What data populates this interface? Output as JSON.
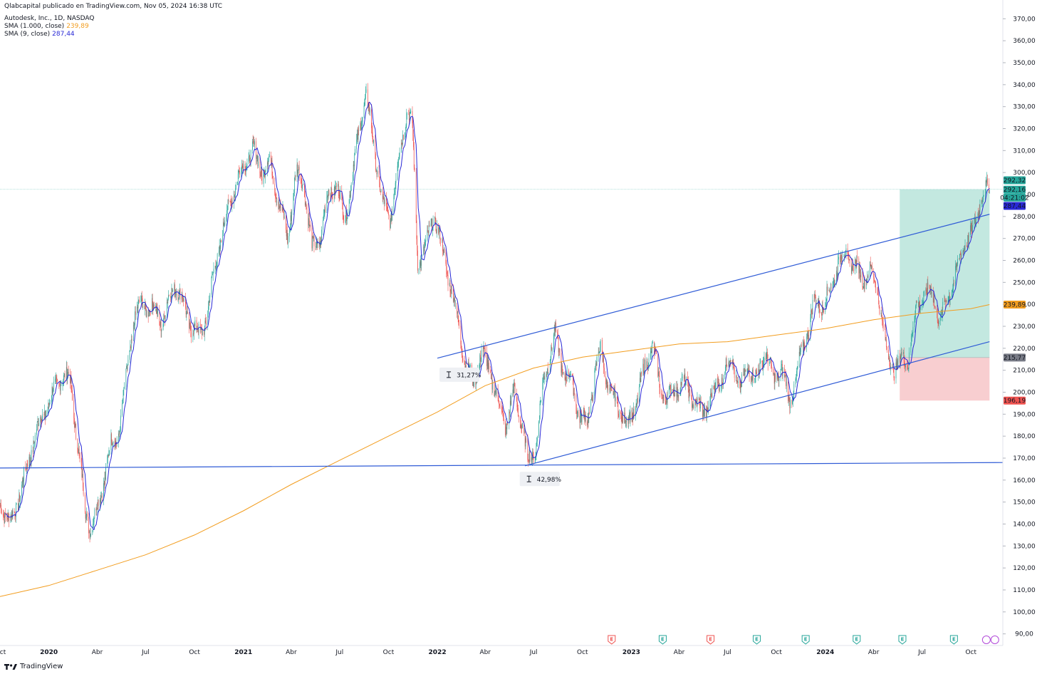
{
  "header": {
    "attribution": "Qlabcapital publicado en TradingView.com, Nov 05, 2024 16:38 UTC",
    "symbol": "Autodesk, Inc., 1D, NASDAQ",
    "indicators": [
      {
        "label": "SMA (1.000, close)",
        "value": "239,89",
        "color": "#f29d1f"
      },
      {
        "label": "SMA (9, close)",
        "value": "287,44",
        "color": "#2929d6"
      }
    ]
  },
  "footer": {
    "brand": "TradingView"
  },
  "colors": {
    "up": "#26a69a",
    "down": "#ef5350",
    "sma_long": "#f29d1f",
    "sma_short": "#2929d6",
    "trendline": "#2f5bd6",
    "profit_zone": "#b9e4da",
    "loss_zone": "#f7c6c8"
  },
  "chart_data": {
    "type": "candlestick",
    "title": "",
    "xlabel": "",
    "ylabel": "",
    "ylim": [
      86,
      374
    ],
    "xlim": [
      "2019-10-01",
      "2024-11-30"
    ],
    "y_ticks": [
      "90,00",
      "100,00",
      "110,00",
      "120,00",
      "130,00",
      "140,00",
      "150,00",
      "160,00",
      "170,00",
      "180,00",
      "190,00",
      "200,00",
      "210,00",
      "220,00",
      "230,00",
      "240,00",
      "250,00",
      "260,00",
      "270,00",
      "280,00",
      "290,00",
      "300,00",
      "310,00",
      "320,00",
      "330,00",
      "340,00",
      "350,00",
      "360,00",
      "370,00"
    ],
    "x_ticks": [
      {
        "date": "2019-10-01",
        "label": "ct",
        "bold": false
      },
      {
        "date": "2020-01-01",
        "label": "2020",
        "bold": true
      },
      {
        "date": "2020-04-01",
        "label": "Abr",
        "bold": false
      },
      {
        "date": "2020-07-01",
        "label": "Jul",
        "bold": false
      },
      {
        "date": "2020-10-01",
        "label": "Oct",
        "bold": false
      },
      {
        "date": "2021-01-01",
        "label": "2021",
        "bold": true
      },
      {
        "date": "2021-04-01",
        "label": "Abr",
        "bold": false
      },
      {
        "date": "2021-07-01",
        "label": "Jul",
        "bold": false
      },
      {
        "date": "2021-10-01",
        "label": "Oct",
        "bold": false
      },
      {
        "date": "2022-01-01",
        "label": "2022",
        "bold": true
      },
      {
        "date": "2022-04-01",
        "label": "Abr",
        "bold": false
      },
      {
        "date": "2022-07-01",
        "label": "Jul",
        "bold": false
      },
      {
        "date": "2022-10-01",
        "label": "Oct",
        "bold": false
      },
      {
        "date": "2023-01-01",
        "label": "2023",
        "bold": true
      },
      {
        "date": "2023-04-01",
        "label": "Abr",
        "bold": false
      },
      {
        "date": "2023-07-01",
        "label": "Jul",
        "bold": false
      },
      {
        "date": "2023-10-01",
        "label": "Oct",
        "bold": false
      },
      {
        "date": "2024-01-01",
        "label": "2024",
        "bold": true
      },
      {
        "date": "2024-04-01",
        "label": "Abr",
        "bold": false
      },
      {
        "date": "2024-07-01",
        "label": "Jul",
        "bold": false
      },
      {
        "date": "2024-10-01",
        "label": "Oct",
        "bold": false
      }
    ],
    "price_path": [
      [
        "2019-10-01",
        150
      ],
      [
        "2019-10-20",
        140
      ],
      [
        "2019-11-15",
        160
      ],
      [
        "2019-12-05",
        180
      ],
      [
        "2019-12-31",
        195
      ],
      [
        "2020-01-25",
        208
      ],
      [
        "2020-02-10",
        205
      ],
      [
        "2020-02-25",
        175
      ],
      [
        "2020-03-10",
        145
      ],
      [
        "2020-03-20",
        138
      ],
      [
        "2020-04-05",
        150
      ],
      [
        "2020-04-25",
        175
      ],
      [
        "2020-05-10",
        180
      ],
      [
        "2020-05-25",
        205
      ],
      [
        "2020-06-10",
        235
      ],
      [
        "2020-06-25",
        240
      ],
      [
        "2020-07-15",
        238
      ],
      [
        "2020-08-01",
        232
      ],
      [
        "2020-08-25",
        250
      ],
      [
        "2020-09-10",
        240
      ],
      [
        "2020-09-25",
        230
      ],
      [
        "2020-10-10",
        226
      ],
      [
        "2020-10-25",
        235
      ],
      [
        "2020-11-10",
        260
      ],
      [
        "2020-11-25",
        275
      ],
      [
        "2020-12-10",
        290
      ],
      [
        "2021-01-05",
        305
      ],
      [
        "2021-01-20",
        310
      ],
      [
        "2021-02-05",
        300
      ],
      [
        "2021-02-20",
        305
      ],
      [
        "2021-03-10",
        285
      ],
      [
        "2021-03-25",
        270
      ],
      [
        "2021-04-10",
        300
      ],
      [
        "2021-04-25",
        295
      ],
      [
        "2021-05-10",
        265
      ],
      [
        "2021-05-25",
        270
      ],
      [
        "2021-06-10",
        290
      ],
      [
        "2021-06-25",
        295
      ],
      [
        "2021-07-10",
        278
      ],
      [
        "2021-07-25",
        298
      ],
      [
        "2021-08-10",
        325
      ],
      [
        "2021-08-20",
        335
      ],
      [
        "2021-09-05",
        310
      ],
      [
        "2021-09-20",
        285
      ],
      [
        "2021-10-05",
        280
      ],
      [
        "2021-10-20",
        305
      ],
      [
        "2021-11-05",
        330
      ],
      [
        "2021-11-15",
        320
      ],
      [
        "2021-11-25",
        260
      ],
      [
        "2021-12-10",
        265
      ],
      [
        "2021-12-25",
        282
      ],
      [
        "2022-01-10",
        265
      ],
      [
        "2022-01-25",
        250
      ],
      [
        "2022-02-10",
        230
      ],
      [
        "2022-02-25",
        210
      ],
      [
        "2022-03-10",
        205
      ],
      [
        "2022-03-25",
        218
      ],
      [
        "2022-04-10",
        210
      ],
      [
        "2022-04-25",
        195
      ],
      [
        "2022-05-10",
        185
      ],
      [
        "2022-05-25",
        200
      ],
      [
        "2022-06-10",
        185
      ],
      [
        "2022-06-20",
        168
      ],
      [
        "2022-07-05",
        175
      ],
      [
        "2022-07-20",
        205
      ],
      [
        "2022-08-10",
        227
      ],
      [
        "2022-08-25",
        210
      ],
      [
        "2022-09-10",
        205
      ],
      [
        "2022-09-25",
        190
      ],
      [
        "2022-10-10",
        185
      ],
      [
        "2022-10-25",
        210
      ],
      [
        "2022-11-05",
        220
      ],
      [
        "2022-11-20",
        200
      ],
      [
        "2022-12-05",
        195
      ],
      [
        "2022-12-25",
        185
      ],
      [
        "2023-01-10",
        195
      ],
      [
        "2023-01-25",
        210
      ],
      [
        "2023-02-10",
        222
      ],
      [
        "2023-02-25",
        200
      ],
      [
        "2023-03-15",
        198
      ],
      [
        "2023-04-05",
        205
      ],
      [
        "2023-04-25",
        198
      ],
      [
        "2023-05-15",
        190
      ],
      [
        "2023-06-05",
        200
      ],
      [
        "2023-06-25",
        210
      ],
      [
        "2023-07-10",
        215
      ],
      [
        "2023-07-25",
        200
      ],
      [
        "2023-08-10",
        213
      ],
      [
        "2023-08-25",
        205
      ],
      [
        "2023-09-10",
        220
      ],
      [
        "2023-09-25",
        205
      ],
      [
        "2023-10-10",
        212
      ],
      [
        "2023-10-25",
        195
      ],
      [
        "2023-11-10",
        210
      ],
      [
        "2023-11-25",
        225
      ],
      [
        "2023-12-10",
        240
      ],
      [
        "2023-12-25",
        240
      ],
      [
        "2024-01-10",
        245
      ],
      [
        "2024-01-25",
        260
      ],
      [
        "2024-02-10",
        262
      ],
      [
        "2024-02-25",
        258
      ],
      [
        "2024-03-10",
        252
      ],
      [
        "2024-03-25",
        255
      ],
      [
        "2024-04-10",
        245
      ],
      [
        "2024-04-25",
        218
      ],
      [
        "2024-05-05",
        212
      ],
      [
        "2024-05-15",
        212
      ],
      [
        "2024-05-25",
        215
      ],
      [
        "2024-06-05",
        215
      ],
      [
        "2024-06-20",
        238
      ],
      [
        "2024-07-05",
        245
      ],
      [
        "2024-07-20",
        245
      ],
      [
        "2024-08-05",
        232
      ],
      [
        "2024-08-20",
        245
      ],
      [
        "2024-09-05",
        255
      ],
      [
        "2024-09-20",
        270
      ],
      [
        "2024-10-05",
        272
      ],
      [
        "2024-10-20",
        290
      ],
      [
        "2024-11-05",
        292
      ]
    ],
    "sma_1000": [
      [
        "2019-10-01",
        107
      ],
      [
        "2020-01-01",
        112
      ],
      [
        "2020-04-01",
        119
      ],
      [
        "2020-07-01",
        126
      ],
      [
        "2020-10-01",
        135
      ],
      [
        "2021-01-01",
        146
      ],
      [
        "2021-04-01",
        158
      ],
      [
        "2021-07-01",
        169
      ],
      [
        "2021-10-01",
        180
      ],
      [
        "2022-01-01",
        191
      ],
      [
        "2022-04-01",
        203
      ],
      [
        "2022-07-01",
        211
      ],
      [
        "2022-10-01",
        216
      ],
      [
        "2023-01-01",
        219
      ],
      [
        "2023-04-01",
        222
      ],
      [
        "2023-07-01",
        223
      ],
      [
        "2023-10-01",
        226
      ],
      [
        "2024-01-01",
        229
      ],
      [
        "2024-04-01",
        233
      ],
      [
        "2024-07-01",
        236
      ],
      [
        "2024-10-01",
        238
      ],
      [
        "2024-11-05",
        239.89
      ]
    ],
    "trendlines": [
      {
        "name": "channel-top",
        "points": [
          [
            "2022-01-01",
            215.5
          ],
          [
            "2024-11-05",
            281
          ]
        ]
      },
      {
        "name": "channel-bottom",
        "points": [
          [
            "2022-06-15",
            166.5
          ],
          [
            "2024-11-05",
            223
          ]
        ]
      },
      {
        "name": "horizontal-support",
        "points": [
          [
            "2019-10-01",
            165.5
          ],
          [
            "2024-11-30",
            168
          ]
        ]
      }
    ],
    "position": {
      "start": "2024-05-20",
      "end": "2024-11-05",
      "entry": 215.77,
      "target": 292.32,
      "stop": 196.19
    },
    "current_price_line": 292.32,
    "measures": [
      {
        "label": "31,27%",
        "date": "2022-01-05",
        "price": 208
      },
      {
        "label": "42,98%",
        "date": "2022-06-05",
        "price": 160.5
      }
    ],
    "price_labels": [
      {
        "text": "292,32",
        "price": 296.5,
        "bg": "#26a69a",
        "fg": "#ffffff"
      },
      {
        "text": "292,16",
        "price": 292.2,
        "bg": "#26a69a",
        "fg": "#ffffff"
      },
      {
        "text": "04:21:02",
        "price": 288.6,
        "bg": "#26a69a",
        "fg": "#ffffff"
      },
      {
        "text": "287,44",
        "price": 284.8,
        "bg": "#2929d6",
        "fg": "#ffffff"
      },
      {
        "text": "239,89",
        "price": 239.89,
        "bg": "#f29d1f",
        "fg": "#131722"
      },
      {
        "text": "215,77",
        "price": 215.77,
        "bg": "#787b86",
        "fg": "#ffffff"
      },
      {
        "text": "196,19",
        "price": 196.19,
        "bg": "#ef5350",
        "fg": "#ffffff"
      }
    ],
    "earnings_markers": [
      {
        "date": "2022-11-25",
        "kind": "neg"
      },
      {
        "date": "2023-03-01",
        "kind": "pos"
      },
      {
        "date": "2023-05-30",
        "kind": "neg"
      },
      {
        "date": "2023-08-25",
        "kind": "pos"
      },
      {
        "date": "2023-11-25",
        "kind": "pos"
      },
      {
        "date": "2024-02-29",
        "kind": "pos"
      },
      {
        "date": "2024-05-25",
        "kind": "pos"
      },
      {
        "date": "2024-08-30",
        "kind": "pos"
      },
      {
        "date": "2024-10-30",
        "kind": "dividend"
      },
      {
        "date": "2024-11-15",
        "kind": "split"
      }
    ],
    "earnings_letter": "E"
  }
}
